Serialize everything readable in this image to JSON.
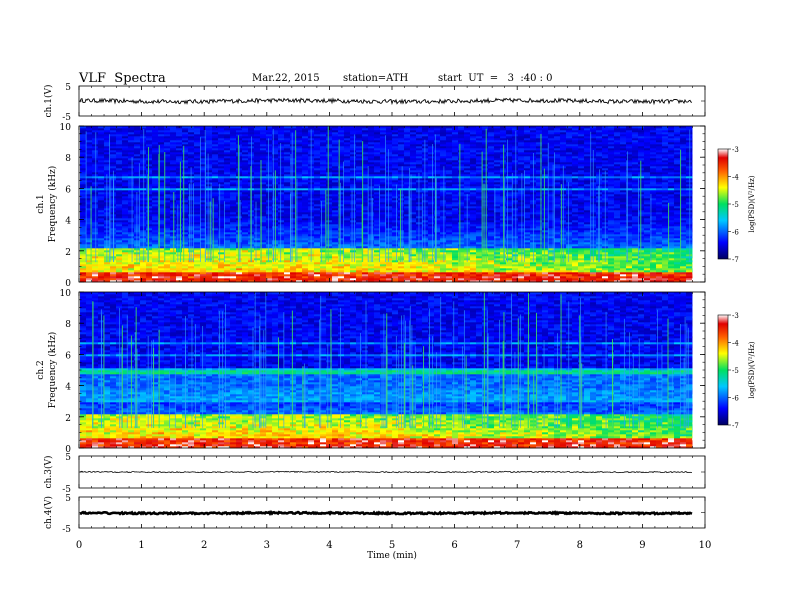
{
  "header": {
    "title": "VLF  Spectra",
    "date": "Mar.22, 2015",
    "station": "station=ATH",
    "start": "start  UT  =   3  :40 : 0"
  },
  "chart_data": [
    {
      "type": "line",
      "channel_label": "ch.1(V)",
      "ylim": [
        -5,
        5
      ],
      "yticks": [
        "5",
        "-5"
      ],
      "x": [
        0,
        9.8
      ],
      "baseline": 0.0,
      "description_values": "noisy signal around 0 V"
    },
    {
      "type": "heatmap",
      "channel_label": "ch.1",
      "ylabel": "Frequency  (kHz)",
      "ylim": [
        0,
        10
      ],
      "yticks": [
        "0",
        "2",
        "4",
        "6",
        "8",
        "10"
      ],
      "xlim": [
        0,
        9.8
      ],
      "colorbar": {
        "label": "log(PSD)(V²/Hz)",
        "ticks": [
          "-3",
          "-4",
          "-5",
          "-6",
          "-7"
        ],
        "range": [
          -7,
          -3
        ]
      }
    },
    {
      "type": "heatmap",
      "channel_label": "ch.2",
      "ylabel": "Frequency  (kHz)",
      "ylim": [
        0,
        10
      ],
      "yticks": [
        "0",
        "2",
        "4",
        "6",
        "8",
        "10"
      ],
      "xlim": [
        0,
        9.8
      ],
      "colorbar": {
        "label": "log(PSD)(V²/Hz)",
        "ticks": [
          "-3",
          "-4",
          "-5",
          "-6",
          "-7"
        ],
        "range": [
          -7,
          -3
        ]
      }
    },
    {
      "type": "line",
      "channel_label": "ch.3(V)",
      "ylim": [
        -5,
        5
      ],
      "yticks": [
        "5",
        "-5"
      ],
      "x": [
        0,
        9.8
      ],
      "baseline": 0.0
    },
    {
      "type": "line",
      "channel_label": "ch.4(V)",
      "ylim": [
        -5,
        5
      ],
      "yticks": [
        "5",
        "-5"
      ],
      "x": [
        0,
        9.8
      ],
      "baseline": -0.2
    }
  ],
  "xaxis": {
    "label": "Time  (min)",
    "ticks": [
      "0",
      "1",
      "2",
      "3",
      "4",
      "5",
      "6",
      "7",
      "8",
      "9",
      "10"
    ],
    "xlim": [
      0,
      10
    ]
  }
}
